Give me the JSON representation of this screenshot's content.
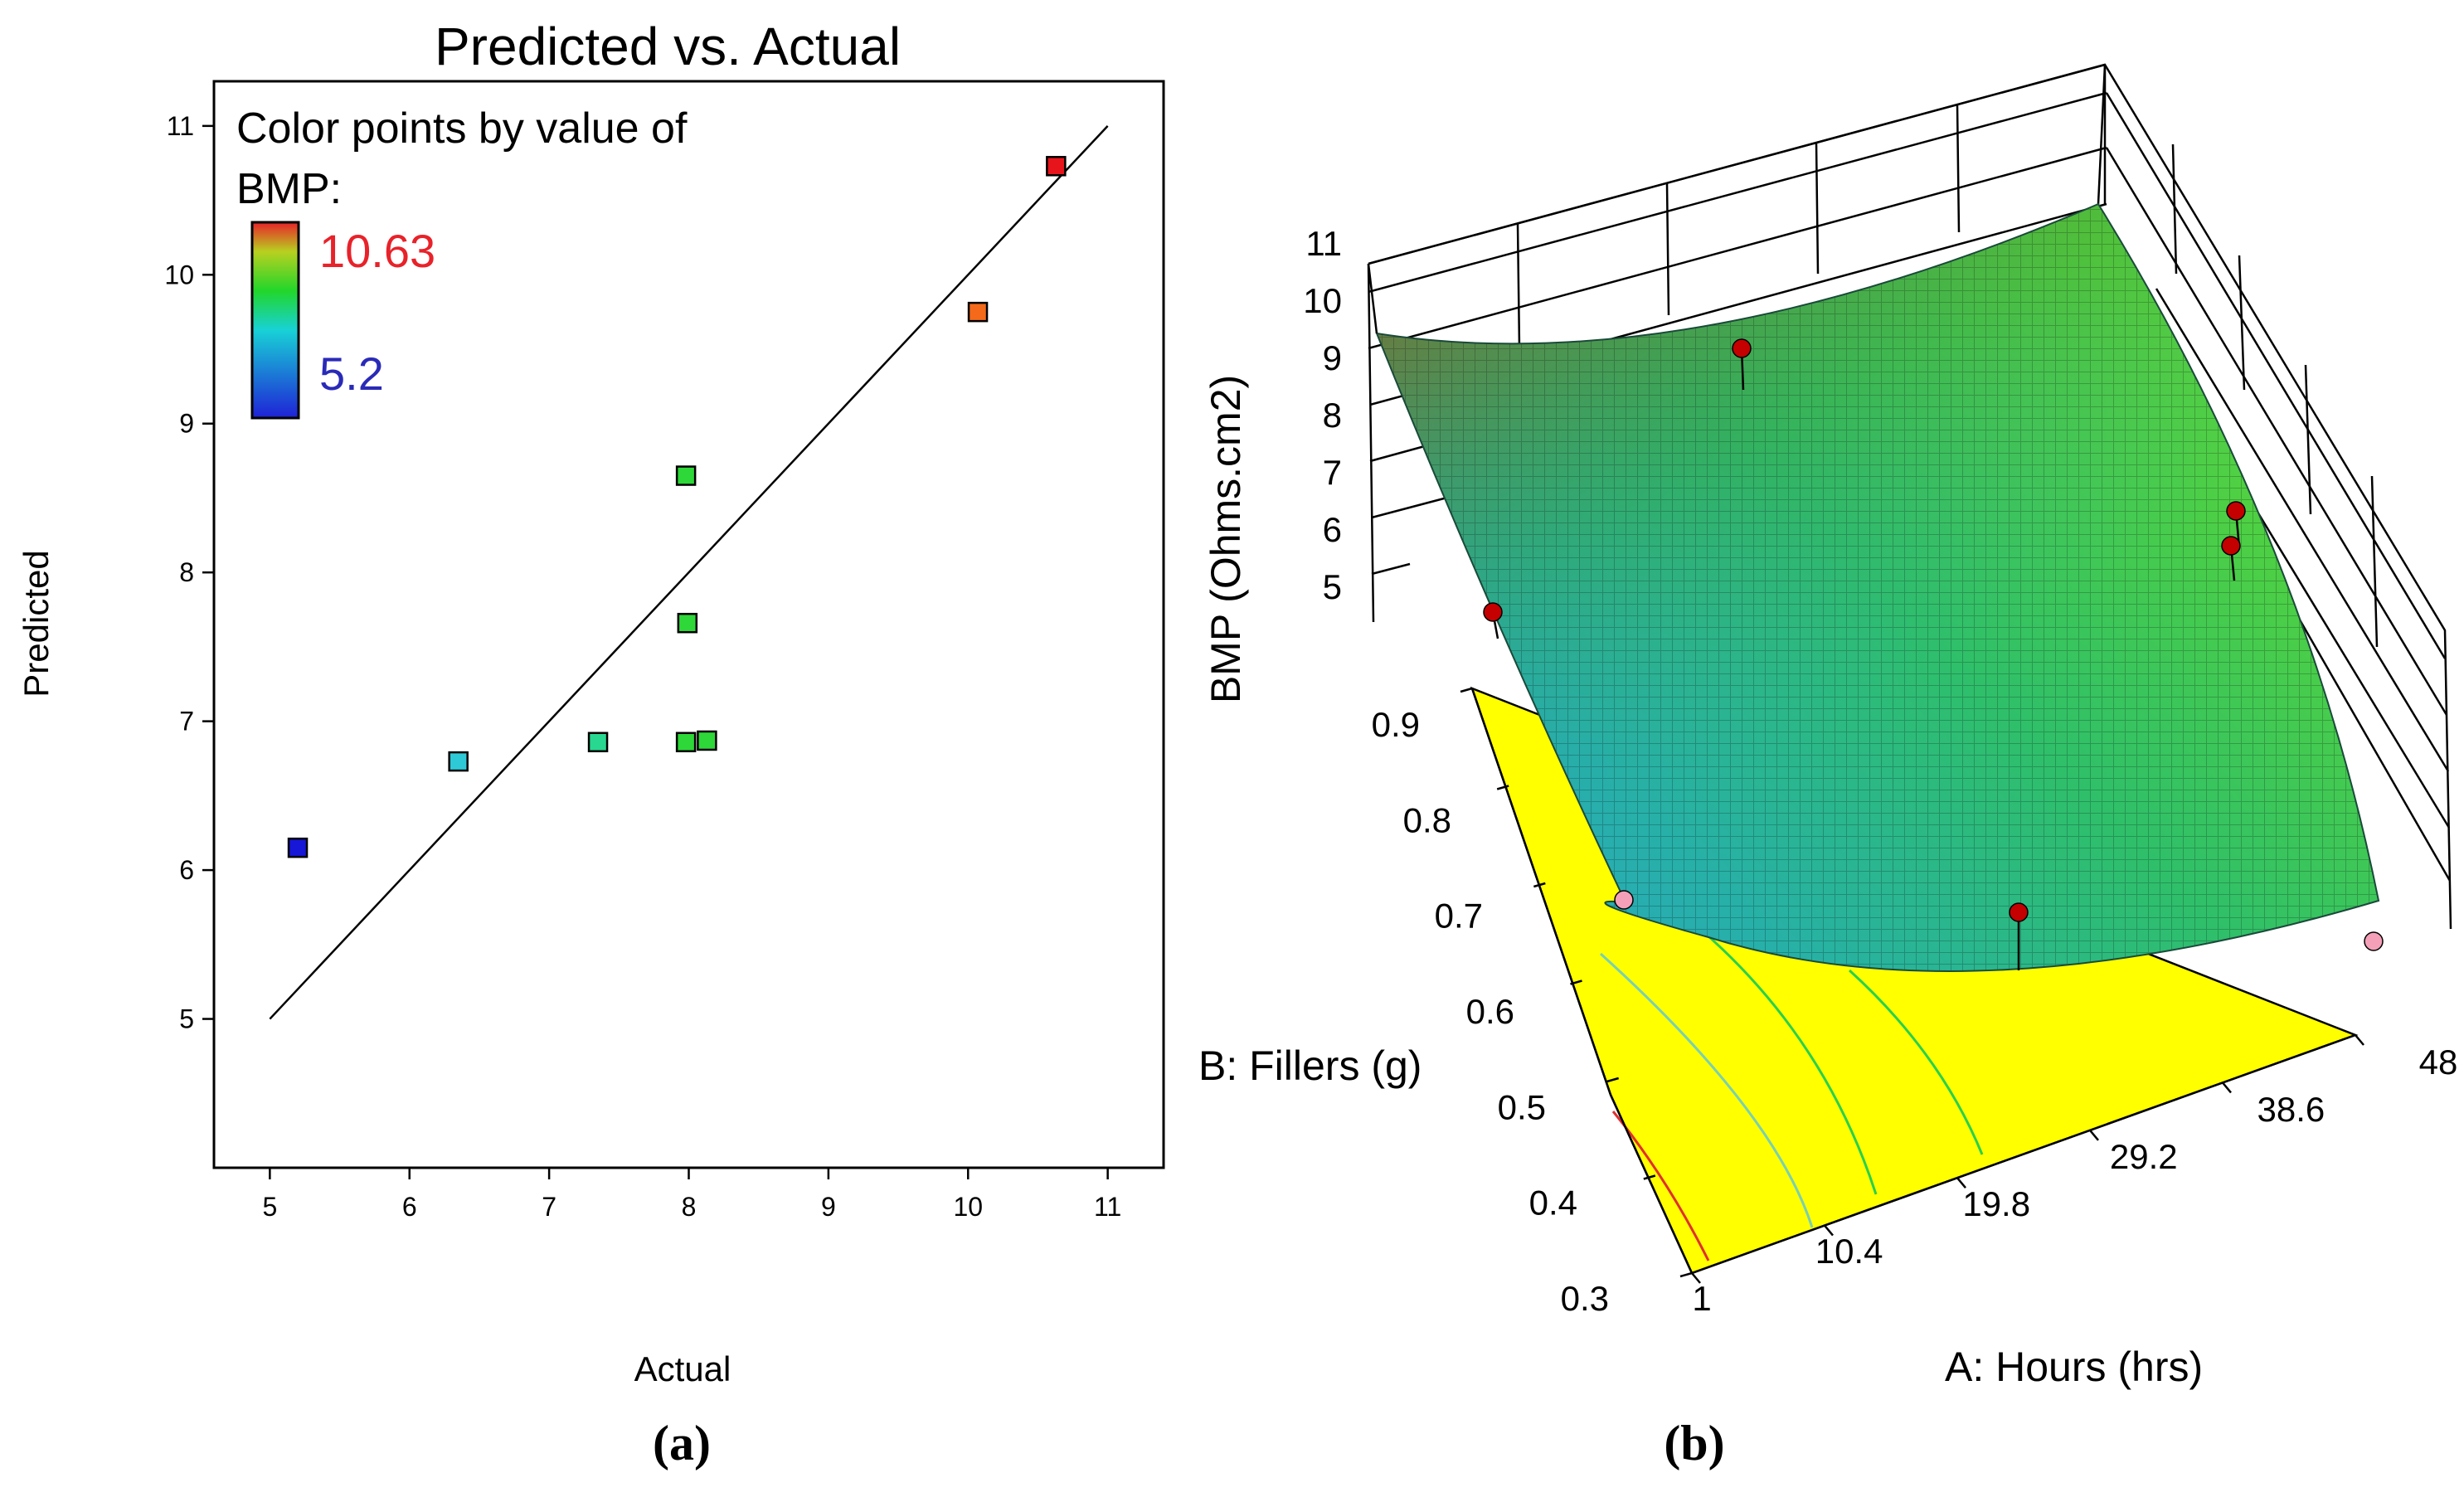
{
  "colors": {
    "low": "#1e22d6",
    "high": "#e8222a",
    "floor": "#ffff00",
    "point3d": "#c40000",
    "point3d_low": "#f4a0b8"
  },
  "panel_a": {
    "caption": "(a)",
    "legend": {
      "line1": "Color points by value of",
      "line2": "BMP:",
      "high": "10.63",
      "low": "5.2"
    }
  },
  "panel_b": {
    "caption": "(b)"
  },
  "chart_data": [
    {
      "type": "scatter",
      "title": "Predicted vs. Actual",
      "xlabel": "Actual",
      "ylabel": "Predicted",
      "xlim": [
        4.6,
        11.4
      ],
      "ylim": [
        4.0,
        11.3
      ],
      "xticks": [
        5,
        6,
        7,
        8,
        9,
        10,
        11
      ],
      "yticks": [
        5,
        6,
        7,
        8,
        9,
        10,
        11
      ],
      "reference_line": [
        [
          5,
          5
        ],
        [
          11,
          11
        ]
      ],
      "color_by": "BMP",
      "color_range": [
        5.2,
        10.63
      ],
      "points": [
        {
          "x": 5.2,
          "y": 6.15,
          "color": "#1717d8"
        },
        {
          "x": 6.35,
          "y": 6.73,
          "color": "#2ec9d6"
        },
        {
          "x": 7.35,
          "y": 6.86,
          "color": "#28d890"
        },
        {
          "x": 7.98,
          "y": 6.86,
          "color": "#2dd838"
        },
        {
          "x": 8.13,
          "y": 6.87,
          "color": "#2dd838"
        },
        {
          "x": 7.99,
          "y": 7.66,
          "color": "#2dd838"
        },
        {
          "x": 7.98,
          "y": 8.65,
          "color": "#2dd838"
        },
        {
          "x": 10.07,
          "y": 9.75,
          "color": "#f46a1a"
        },
        {
          "x": 10.63,
          "y": 10.73,
          "color": "#e8141c"
        }
      ]
    },
    {
      "type": "surface3d",
      "xlabel": "A: Hours (hrs)",
      "ylabel": "B: Fillers (g)",
      "zlabel": "BMP (Ohms.cm2)",
      "xticks": [
        "1",
        "10.4",
        "19.8",
        "29.2",
        "38.6",
        "48"
      ],
      "yticks": [
        "0.3",
        "0.4",
        "0.5",
        "0.6",
        "0.7",
        "0.8",
        "0.9"
      ],
      "zticks": [
        "5",
        "6",
        "7",
        "8",
        "9",
        "10",
        "11"
      ],
      "surface_corners": {
        "hours_1_fillers_0.3": 9.5,
        "hours_48_fillers_0.3": 5.4,
        "hours_1_fillers_0.9": 9.8,
        "hours_48_fillers_0.9": 9.3,
        "minimum_region": 4.8
      }
    }
  ]
}
